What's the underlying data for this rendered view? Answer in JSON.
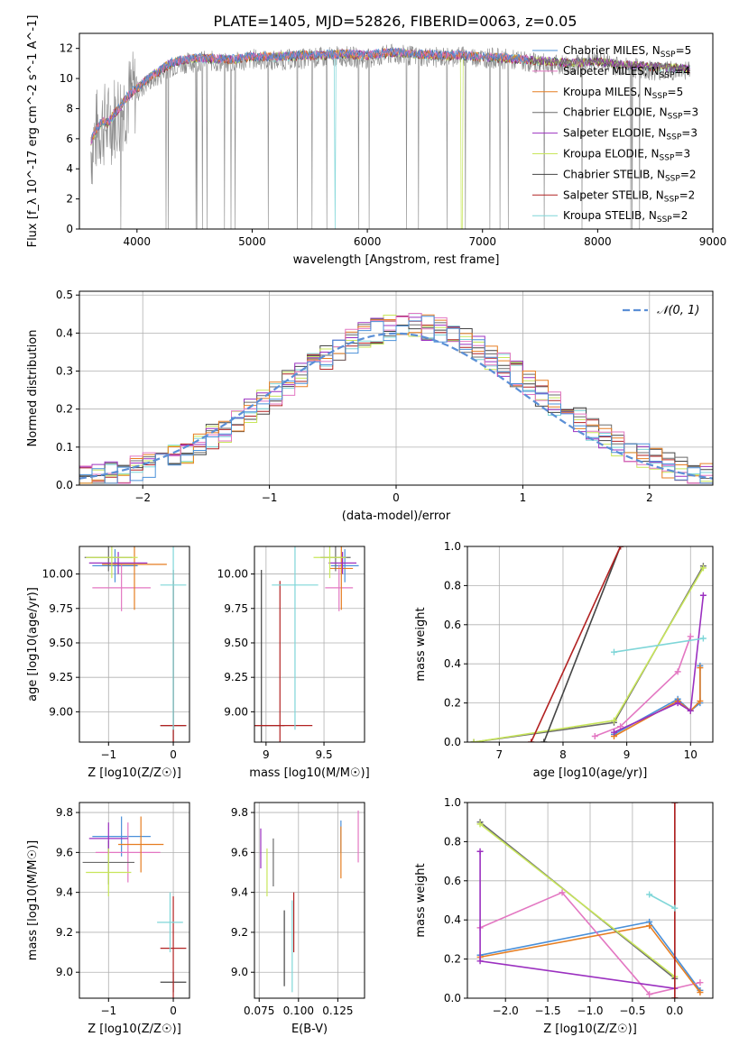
{
  "figure_title": "PLATE=1405, MJD=52826, FIBERID=0063, z=0.05",
  "colors": {
    "chabrier_miles": "#4a90d9",
    "salpeter_miles": "#e377c2",
    "kroupa_miles": "#e67e22",
    "chabrier_elodie": "#6b6b6b",
    "salpeter_elodie": "#9b30c0",
    "kroupa_elodie": "#c8e65a",
    "chabrier_stelib": "#444444",
    "salpeter_stelib": "#b22222",
    "kroupa_stelib": "#7fd6d8",
    "gaussian": "#5b8fd6",
    "observed": "#888888",
    "grid": "#b0b0b0"
  },
  "legend_spectrum": [
    {
      "model": "Chabrier MILES",
      "n": "5",
      "color_key": "chabrier_miles"
    },
    {
      "model": "Salpeter MILES",
      "n": "4",
      "color_key": "salpeter_miles"
    },
    {
      "model": "Kroupa MILES",
      "n": "5",
      "color_key": "kroupa_miles"
    },
    {
      "model": "Chabrier ELODIE",
      "n": "3",
      "color_key": "chabrier_elodie"
    },
    {
      "model": "Salpeter ELODIE",
      "n": "3",
      "color_key": "salpeter_elodie"
    },
    {
      "model": "Kroupa ELODIE",
      "n": "3",
      "color_key": "kroupa_elodie"
    },
    {
      "model": "Chabrier STELIB",
      "n": "2",
      "color_key": "chabrier_stelib"
    },
    {
      "model": "Salpeter STELIB",
      "n": "2",
      "color_key": "salpeter_stelib"
    },
    {
      "model": "Kroupa STELIB",
      "n": "2",
      "color_key": "kroupa_stelib"
    }
  ],
  "chart_data": [
    {
      "id": "spectrum",
      "type": "line",
      "xlabel": "wavelength [Angstrom, rest frame]",
      "ylabel": "Flux [f_λ 10^-17 erg cm^-2 s^-1 A^-1]",
      "xlim": [
        3500,
        9000
      ],
      "ylim": [
        0,
        13
      ],
      "xticks": [
        4000,
        5000,
        6000,
        7000,
        8000,
        9000
      ],
      "yticks": [
        0,
        2,
        4,
        6,
        8,
        10,
        12
      ],
      "grid": false,
      "legend_position": "right",
      "observed_x": [
        3600,
        3650,
        3700,
        3750,
        3800,
        3850,
        3900,
        3950,
        4000,
        4100,
        4200,
        4300,
        4400,
        4500,
        4600,
        4800,
        5000,
        5200,
        5400,
        5600,
        5800,
        6000,
        6200,
        6400,
        6600,
        6800,
        7000,
        7200,
        7400,
        7600,
        7800,
        8000,
        8200,
        8400,
        8600,
        8800
      ],
      "observed_y": [
        5.2,
        6.5,
        7.0,
        6.8,
        7.5,
        7.8,
        8.4,
        8.9,
        9.1,
        9.8,
        10.2,
        10.8,
        11.0,
        11.1,
        11.2,
        11.0,
        11.3,
        11.2,
        11.3,
        11.4,
        11.5,
        11.3,
        11.6,
        11.5,
        11.4,
        11.5,
        11.4,
        11.3,
        11.1,
        10.9,
        10.9,
        11.2,
        10.8,
        10.6,
        10.5,
        10.6
      ],
      "model_y": [
        5.8,
        6.6,
        7.1,
        7.0,
        7.6,
        8.0,
        8.6,
        9.0,
        9.3,
        10.0,
        10.5,
        11.0,
        11.2,
        11.3,
        11.3,
        11.2,
        11.4,
        11.4,
        11.5,
        11.5,
        11.6,
        11.5,
        11.7,
        11.6,
        11.5,
        11.5,
        11.4,
        11.3,
        11.2,
        11.1,
        11.0,
        11.1,
        10.9,
        10.8,
        10.7,
        10.6
      ]
    },
    {
      "id": "residuals",
      "type": "line",
      "xlabel": "(data-model)/error",
      "ylabel": "Normed distribution",
      "xlim": [
        -2.5,
        2.5
      ],
      "ylim": [
        0,
        0.51
      ],
      "xticks": [
        -2,
        -1,
        0,
        1,
        2
      ],
      "yticks": [
        0.0,
        0.1,
        0.2,
        0.3,
        0.4,
        0.5
      ],
      "grid": true,
      "legend_position": "top-right",
      "gaussian_label": "𝒩(0, 1)",
      "bin_width": 0.1,
      "hist_x_start": -2.5
    },
    {
      "id": "age_vs_Z",
      "type": "scatter",
      "xlabel": "Z [log10(Z/Z☉)]",
      "ylabel": "age [log10(age/yr)]",
      "xlim": [
        -1.45,
        0.25
      ],
      "ylim": [
        8.78,
        10.2
      ],
      "xticks": [
        -1,
        0
      ],
      "yticks": [
        9.0,
        9.25,
        9.5,
        9.75,
        10.0
      ],
      "grid": true,
      "points": [
        {
          "color_key": "chabrier_miles",
          "x": -0.9,
          "xerr": 0.35,
          "y": 10.06,
          "yerr": 0.12
        },
        {
          "color_key": "salpeter_miles",
          "x": -0.8,
          "xerr": 0.45,
          "y": 9.9,
          "yerr": 0.17
        },
        {
          "color_key": "kroupa_miles",
          "x": -0.6,
          "xerr": 0.5,
          "y": 10.07,
          "yerr": 0.33
        },
        {
          "color_key": "chabrier_elodie",
          "x": -1.0,
          "xerr": 0.37,
          "y": 10.12,
          "yerr": 0.1
        },
        {
          "color_key": "salpeter_elodie",
          "x": -0.85,
          "xerr": 0.45,
          "y": 10.08,
          "yerr": 0.08
        },
        {
          "color_key": "kroupa_elodie",
          "x": -0.95,
          "xerr": 0.4,
          "y": 10.12,
          "yerr": 0.15
        },
        {
          "color_key": "chabrier_stelib",
          "x": 0.0,
          "xerr": 0.2,
          "y": 8.9,
          "yerr": 1.13
        },
        {
          "color_key": "salpeter_stelib",
          "x": 0.0,
          "xerr": 0.2,
          "y": 8.9,
          "yerr": 1.05
        },
        {
          "color_key": "kroupa_stelib",
          "x": 0.0,
          "xerr": 0.2,
          "y": 9.92,
          "yerr": 1.05
        }
      ]
    },
    {
      "id": "age_vs_mass",
      "type": "scatter",
      "xlabel": "mass [log10(M/M☉)]",
      "ylabel": "",
      "xlim": [
        8.9,
        9.85
      ],
      "ylim": [
        8.78,
        10.2
      ],
      "xticks": [
        9.0,
        9.5
      ],
      "yticks": [
        9.0,
        9.25,
        9.5,
        9.75,
        10.0
      ],
      "grid": true,
      "points": [
        {
          "color_key": "chabrier_miles",
          "x": 9.68,
          "xerr": 0.12,
          "y": 10.06,
          "yerr": 0.12
        },
        {
          "color_key": "salpeter_miles",
          "x": 9.63,
          "xerr": 0.12,
          "y": 9.9,
          "yerr": 0.17
        },
        {
          "color_key": "kroupa_miles",
          "x": 9.65,
          "xerr": 0.1,
          "y": 10.04,
          "yerr": 0.3
        },
        {
          "color_key": "chabrier_elodie",
          "x": 9.6,
          "xerr": 0.13,
          "y": 10.12,
          "yerr": 0.1
        },
        {
          "color_key": "salpeter_elodie",
          "x": 9.66,
          "xerr": 0.12,
          "y": 10.08,
          "yerr": 0.08
        },
        {
          "color_key": "kroupa_elodie",
          "x": 9.55,
          "xerr": 0.14,
          "y": 10.12,
          "yerr": 0.15
        },
        {
          "color_key": "chabrier_stelib",
          "x": 8.96,
          "xerr": 0.2,
          "y": 8.9,
          "yerr": 1.13
        },
        {
          "color_key": "salpeter_stelib",
          "x": 9.12,
          "xerr": 0.28,
          "y": 8.9,
          "yerr": 1.05
        },
        {
          "color_key": "kroupa_stelib",
          "x": 9.25,
          "xerr": 0.2,
          "y": 9.92,
          "yerr": 1.05
        }
      ]
    },
    {
      "id": "mass_weight_vs_age",
      "type": "line",
      "xlabel": "age [log10(age/yr)]",
      "ylabel": "mass weight",
      "xlim": [
        6.5,
        10.35
      ],
      "ylim": [
        0.0,
        1.0
      ],
      "xticks": [
        7,
        8,
        9,
        10
      ],
      "yticks": [
        0.0,
        0.2,
        0.4,
        0.6,
        0.8,
        1.0
      ],
      "grid": true,
      "series": [
        {
          "color_key": "chabrier_miles",
          "x": [
            8.8,
            9.8,
            10.0,
            10.15,
            10.15
          ],
          "y": [
            0.04,
            0.22,
            0.16,
            0.2,
            0.39
          ]
        },
        {
          "color_key": "salpeter_miles",
          "x": [
            8.5,
            8.9,
            9.8,
            10.0
          ],
          "y": [
            0.03,
            0.08,
            0.36,
            0.54
          ]
        },
        {
          "color_key": "kroupa_miles",
          "x": [
            8.8,
            9.8,
            10.0,
            10.15,
            10.15
          ],
          "y": [
            0.03,
            0.21,
            0.16,
            0.21,
            0.38
          ]
        },
        {
          "color_key": "chabrier_elodie",
          "x": [
            6.6,
            8.8,
            10.2
          ],
          "y": [
            0.0,
            0.1,
            0.9
          ]
        },
        {
          "color_key": "salpeter_elodie",
          "x": [
            8.8,
            9.8,
            10.0,
            10.2
          ],
          "y": [
            0.05,
            0.2,
            0.16,
            0.75
          ]
        },
        {
          "color_key": "kroupa_elodie",
          "x": [
            6.6,
            8.8,
            10.2
          ],
          "y": [
            0.0,
            0.11,
            0.89
          ]
        },
        {
          "color_key": "chabrier_stelib",
          "x": [
            7.7,
            8.9
          ],
          "y": [
            0.0,
            1.0
          ]
        },
        {
          "color_key": "salpeter_stelib",
          "x": [
            7.5,
            8.9
          ],
          "y": [
            0.0,
            1.0
          ]
        },
        {
          "color_key": "kroupa_stelib",
          "x": [
            8.8,
            10.2
          ],
          "y": [
            0.46,
            0.53
          ]
        }
      ]
    },
    {
      "id": "mass_vs_Z",
      "type": "scatter",
      "xlabel": "Z [log10(Z/Z☉)]",
      "ylabel": "mass [log10(M/M☉)]",
      "xlim": [
        -1.45,
        0.25
      ],
      "ylim": [
        8.87,
        9.85
      ],
      "xticks": [
        -1,
        0
      ],
      "yticks": [
        9.0,
        9.2,
        9.4,
        9.6,
        9.8
      ],
      "grid": true,
      "points": [
        {
          "color_key": "chabrier_miles",
          "x": -0.8,
          "xerr": 0.45,
          "y": 9.68,
          "yerr": 0.1
        },
        {
          "color_key": "salpeter_miles",
          "x": -0.7,
          "xerr": 0.5,
          "y": 9.6,
          "yerr": 0.15
        },
        {
          "color_key": "kroupa_miles",
          "x": -0.5,
          "xerr": 0.35,
          "y": 9.64,
          "yerr": 0.14
        },
        {
          "color_key": "chabrier_elodie",
          "x": -1.0,
          "xerr": 0.4,
          "y": 9.55,
          "yerr": 0.11
        },
        {
          "color_key": "salpeter_elodie",
          "x": -1.0,
          "xerr": 0.3,
          "y": 9.67,
          "yerr": 0.08
        },
        {
          "color_key": "kroupa_elodie",
          "x": -1.0,
          "xerr": 0.35,
          "y": 9.5,
          "yerr": 0.12
        },
        {
          "color_key": "chabrier_stelib",
          "x": 0.0,
          "xerr": 0.2,
          "y": 8.95,
          "yerr": 0.05
        },
        {
          "color_key": "salpeter_stelib",
          "x": 0.0,
          "xerr": 0.2,
          "y": 9.12,
          "yerr": 0.26
        },
        {
          "color_key": "kroupa_stelib",
          "x": -0.05,
          "xerr": 0.2,
          "y": 9.25,
          "yerr": 0.15
        }
      ]
    },
    {
      "id": "mass_vs_ebv",
      "type": "scatter",
      "xlabel": "E(B-V)",
      "ylabel": "",
      "xlim": [
        0.072,
        0.142
      ],
      "ylim": [
        8.87,
        9.85
      ],
      "xticks": [
        0.075,
        0.1,
        0.125
      ],
      "xticklabels": [
        "0.075",
        "0.100",
        "0.125"
      ],
      "yticks": [
        9.0,
        9.2,
        9.4,
        9.6,
        9.8
      ],
      "grid": true,
      "points": [
        {
          "color_key": "chabrier_miles",
          "x": 0.127,
          "xerr": 0.0,
          "y": 9.68,
          "yerr": 0.08
        },
        {
          "color_key": "salpeter_miles",
          "x": 0.138,
          "xerr": 0.0,
          "y": 9.68,
          "yerr": 0.13
        },
        {
          "color_key": "kroupa_miles",
          "x": 0.127,
          "xerr": 0.0,
          "y": 9.6,
          "yerr": 0.13
        },
        {
          "color_key": "chabrier_elodie",
          "x": 0.084,
          "xerr": 0.0,
          "y": 9.55,
          "yerr": 0.12
        },
        {
          "color_key": "salpeter_elodie",
          "x": 0.076,
          "xerr": 0.0,
          "y": 9.62,
          "yerr": 0.1
        },
        {
          "color_key": "kroupa_elodie",
          "x": 0.08,
          "xerr": 0.0,
          "y": 9.5,
          "yerr": 0.12
        },
        {
          "color_key": "chabrier_stelib",
          "x": 0.091,
          "xerr": 0.0,
          "y": 9.12,
          "yerr": 0.19
        },
        {
          "color_key": "salpeter_stelib",
          "x": 0.097,
          "xerr": 0.0,
          "y": 9.25,
          "yerr": 0.15
        },
        {
          "color_key": "kroupa_stelib",
          "x": 0.096,
          "xerr": 0.0,
          "y": 9.13,
          "yerr": 0.23
        }
      ]
    },
    {
      "id": "mass_weight_vs_Z",
      "type": "line",
      "xlabel": "Z [log10(Z/Z☉)]",
      "ylabel": "mass weight",
      "xlim": [
        -2.45,
        0.45
      ],
      "ylim": [
        0.0,
        1.0
      ],
      "xticks": [
        -2.0,
        -1.5,
        -1.0,
        -0.5,
        0.0
      ],
      "xticklabels": [
        "−2.0",
        "−1.5",
        "−1.0",
        "−0.5",
        "0.0"
      ],
      "yticks": [
        0.0,
        0.2,
        0.4,
        0.6,
        0.8,
        1.0
      ],
      "grid": true,
      "series": [
        {
          "color_key": "chabrier_miles",
          "x": [
            -2.3,
            -0.3,
            0.3
          ],
          "y": [
            0.22,
            0.39,
            0.04
          ]
        },
        {
          "color_key": "salpeter_miles",
          "x": [
            -2.3,
            -1.33,
            -0.3,
            0.3
          ],
          "y": [
            0.36,
            0.54,
            0.02,
            0.08
          ]
        },
        {
          "color_key": "kroupa_miles",
          "x": [
            -2.3,
            -0.3,
            0.3
          ],
          "y": [
            0.21,
            0.37,
            0.03
          ]
        },
        {
          "color_key": "chabrier_elodie",
          "x": [
            -2.3,
            0.0
          ],
          "y": [
            0.9,
            0.1
          ]
        },
        {
          "color_key": "salpeter_elodie",
          "x": [
            -2.3,
            -2.3,
            0.0
          ],
          "y": [
            0.75,
            0.19,
            0.05
          ]
        },
        {
          "color_key": "kroupa_elodie",
          "x": [
            -2.3,
            0.0
          ],
          "y": [
            0.89,
            0.11
          ]
        },
        {
          "color_key": "chabrier_stelib",
          "x": [
            0.0,
            0.0
          ],
          "y": [
            0.0,
            1.0
          ]
        },
        {
          "color_key": "salpeter_stelib",
          "x": [
            0.0,
            0.0
          ],
          "y": [
            0.0,
            1.0
          ]
        },
        {
          "color_key": "kroupa_stelib",
          "x": [
            -0.3,
            0.0
          ],
          "y": [
            0.53,
            0.46
          ]
        }
      ]
    }
  ]
}
